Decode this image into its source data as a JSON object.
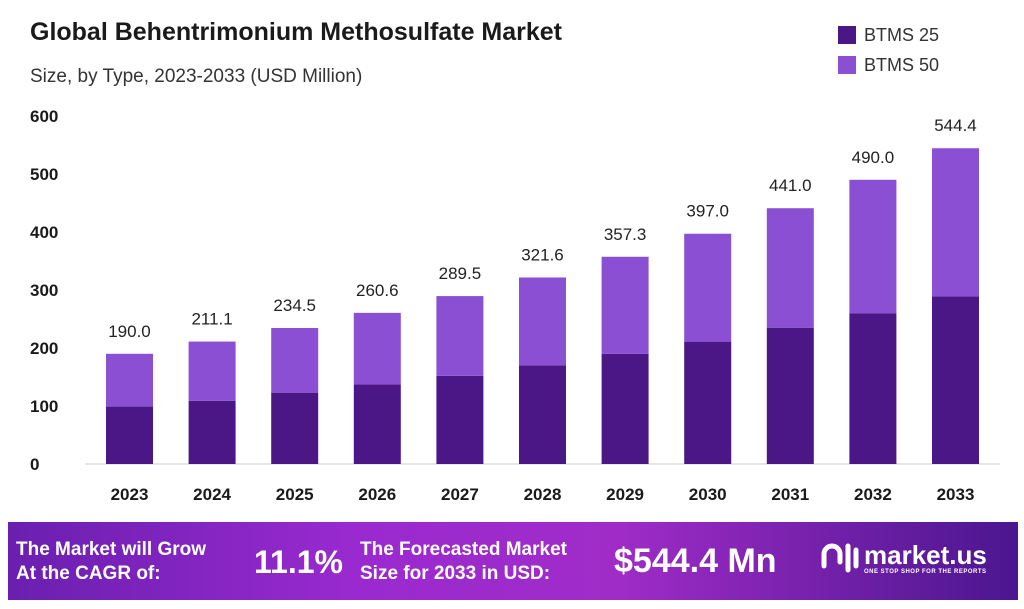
{
  "chart_data": {
    "type": "stacked-bar",
    "title": "Global Behentrimonium Methosulfate Market",
    "subtitle": "Size, by Type, 2023-2033 (USD Million)",
    "categories": [
      "2023",
      "2024",
      "2025",
      "2026",
      "2027",
      "2028",
      "2029",
      "2030",
      "2031",
      "2032",
      "2033"
    ],
    "series": [
      {
        "name": "BTMS 25",
        "color": "#4b1787",
        "values": [
          99,
          109,
          123,
          137,
          152,
          170,
          190,
          211,
          235,
          260,
          289
        ]
      },
      {
        "name": "BTMS 50",
        "color": "#8a4fd3",
        "values": [
          91,
          102.1,
          111.5,
          123.6,
          137.5,
          151.6,
          167.3,
          186,
          206,
          230,
          255.4
        ]
      }
    ],
    "totals": [
      "190.0",
      "211.1",
      "234.5",
      "260.6",
      "289.5",
      "321.6",
      "357.3",
      "397.0",
      "441.0",
      "490.0",
      "544.4"
    ],
    "yticks": [
      0,
      100,
      200,
      300,
      400,
      500,
      600
    ],
    "ylim": [
      0,
      600
    ],
    "grid": false,
    "legend": "top-right"
  },
  "footer": {
    "cagr_label_1": "The Market will Grow",
    "cagr_label_2": "At the CAGR of:",
    "cagr_value": "11.1%",
    "forecast_label_1": "The Forecasted Market",
    "forecast_label_2": "Size for 2033 in USD:",
    "forecast_value": "$544.4 Mn",
    "logo": "market.us",
    "logo_tagline": "ONE STOP SHOP FOR THE REPORTS"
  }
}
